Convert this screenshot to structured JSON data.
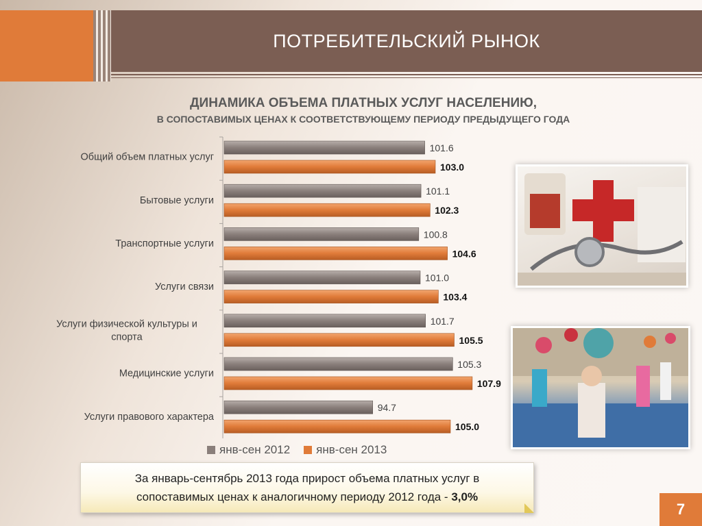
{
  "header": {
    "title": "ПОТРЕБИТЕЛЬСКИЙ РЫНОК"
  },
  "subtitle": {
    "line1": "ДИНАМИКА ОБЪЕМА ПЛАТНЫХ УСЛУГ НАСЕЛЕНИЮ,",
    "line2": "В СОПОСТАВИМЫХ ЦЕНАХ К СООТВЕТСТВУЮЩЕМУ ПЕРИОДУ ПРЕДЫДУЩЕГО ГОДА"
  },
  "chart_data": {
    "type": "bar",
    "orientation": "horizontal",
    "title": "",
    "categories": [
      [
        "Общий объем платных услуг"
      ],
      [
        "Бытовые услуги"
      ],
      [
        "Транспортные услуги"
      ],
      [
        "Услуги связи"
      ],
      [
        "Услуги физической культуры и",
        "спорта"
      ],
      [
        "Медицинские услуги"
      ],
      [
        "Услуги правового характера"
      ]
    ],
    "series": [
      {
        "name": "янв-сен 2012",
        "color": "#8a7f7b",
        "values": [
          "101.6",
          "101.1",
          "100.8",
          "101.0",
          "101.7",
          "105.3",
          "94.7"
        ]
      },
      {
        "name": "янв-сен 2013",
        "color": "#e07b39",
        "values": [
          "103.0",
          "102.3",
          "104.6",
          "103.4",
          "105.5",
          "107.9",
          "105.0"
        ]
      }
    ],
    "xlim": [
      75,
      110
    ],
    "grid": false,
    "legend_position": "bottom"
  },
  "legend": {
    "items": [
      "янв-сен 2012",
      "янв-сен 2013"
    ]
  },
  "note": {
    "line1": "За январь-сентябрь 2013 года прирост объема платных услуг в",
    "line2_prefix": "сопоставимых ценах к аналогичному периоду 2012 года - ",
    "line2_value": "3,0%"
  },
  "page_number": "7",
  "icons": [
    "medical-photo",
    "sport-photo"
  ]
}
